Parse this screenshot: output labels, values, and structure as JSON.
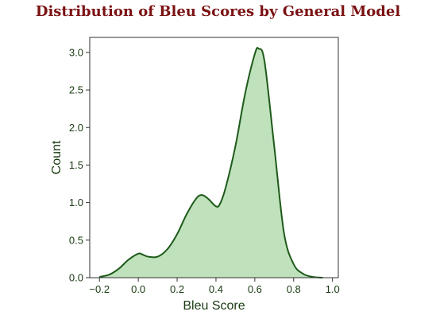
{
  "chart_data": {
    "type": "area",
    "title": "Distribution of Bleu Scores by General Model",
    "xlabel": "Bleu Score",
    "ylabel": "Count",
    "xlim": [
      -0.25,
      1.03
    ],
    "ylim": [
      0,
      3.2
    ],
    "x_ticks": [
      -0.2,
      0.0,
      0.2,
      0.4,
      0.6,
      0.8,
      1.0
    ],
    "x_tick_labels": [
      "−0.2",
      "0.0",
      "0.2",
      "0.4",
      "0.6",
      "0.8",
      "1.0"
    ],
    "y_ticks": [
      0.0,
      0.5,
      1.0,
      1.5,
      2.0,
      2.5,
      3.0
    ],
    "y_tick_labels": [
      "0.0",
      "0.5",
      "1.0",
      "1.5",
      "2.0",
      "2.5",
      "3.0"
    ],
    "grid": false,
    "colors": {
      "title": "#7b1113",
      "line": "#1e5a1a",
      "fill": "#b4dcb0",
      "text": "#1a3a12",
      "axes": "#333333"
    },
    "series": [
      {
        "x": [
          -0.2,
          -0.15,
          -0.1,
          -0.05,
          0.0,
          0.02,
          0.05,
          0.1,
          0.15,
          0.2,
          0.25,
          0.3,
          0.33,
          0.36,
          0.4,
          0.42,
          0.45,
          0.5,
          0.55,
          0.6,
          0.62,
          0.65,
          0.7,
          0.75,
          0.8,
          0.85,
          0.9,
          0.95
        ],
        "y": [
          0.01,
          0.04,
          0.12,
          0.24,
          0.32,
          0.31,
          0.28,
          0.28,
          0.38,
          0.58,
          0.85,
          1.06,
          1.1,
          1.05,
          0.95,
          0.98,
          1.2,
          1.75,
          2.45,
          2.98,
          3.05,
          2.88,
          1.75,
          0.6,
          0.18,
          0.05,
          0.01,
          0.0
        ]
      }
    ]
  }
}
